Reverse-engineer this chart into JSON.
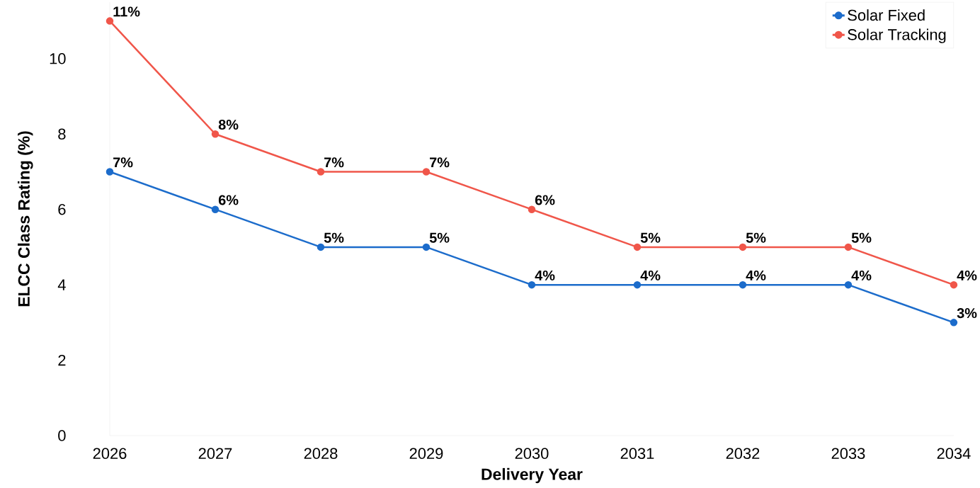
{
  "chart_data": {
    "type": "line",
    "xlabel": "Delivery Year",
    "ylabel": "ELCC Class Rating (%)",
    "x": [
      2026,
      2027,
      2028,
      2029,
      2030,
      2031,
      2032,
      2033,
      2034
    ],
    "xlim": [
      2026,
      2034
    ],
    "xticks": [
      2026,
      2027,
      2028,
      2029,
      2030,
      2031,
      2032,
      2033,
      2034
    ],
    "ylim": [
      0,
      11.5
    ],
    "yticks": [
      0,
      2,
      4,
      6,
      8,
      10
    ],
    "marker": "circle",
    "legend": "top right",
    "series": [
      {
        "name": "Solar Fixed",
        "color": "#1c6ccb",
        "values": [
          7,
          6,
          5,
          5,
          4,
          4,
          4,
          4,
          3
        ],
        "value_labels": [
          "7%",
          "6%",
          "5%",
          "5%",
          "4%",
          "4%",
          "4%",
          "4%",
          "3%"
        ]
      },
      {
        "name": "Solar Tracking",
        "color": "#f0564a",
        "values": [
          11,
          8,
          7,
          7,
          6,
          5,
          5,
          5,
          4
        ],
        "value_labels": [
          "11%",
          "8%",
          "7%",
          "7%",
          "6%",
          "5%",
          "5%",
          "5%",
          "4%"
        ]
      }
    ]
  }
}
